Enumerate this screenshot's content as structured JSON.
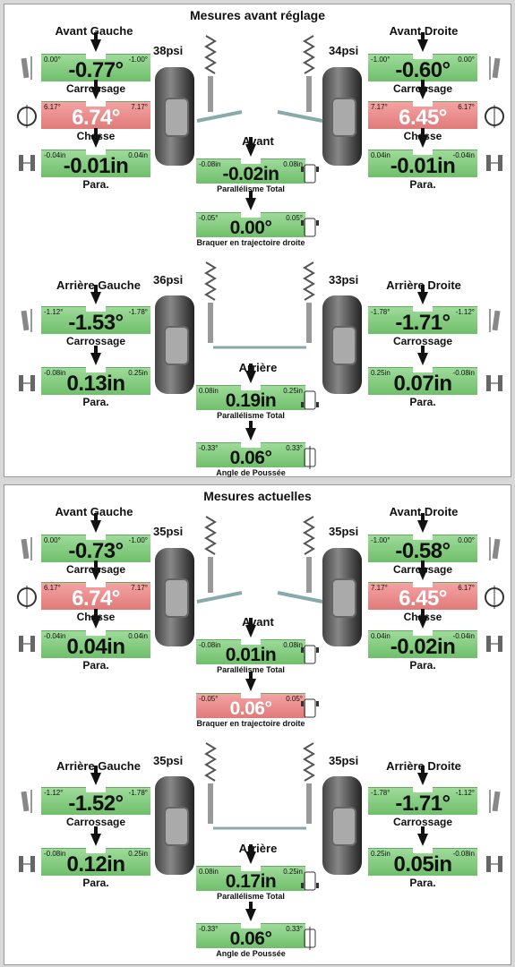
{
  "panels": [
    {
      "title": "Mesures avant réglage",
      "front_left": {
        "header": "Avant Gauche",
        "psi": "38psi",
        "camber": {
          "lo": "0.00°",
          "hi": "-1.00°",
          "value": "-0.77°",
          "label": "Carrossage",
          "state": "green"
        },
        "caster": {
          "lo": "6.17°",
          "hi": "7.17°",
          "value": "6.74°",
          "label": "Chasse",
          "state": "red"
        },
        "toe": {
          "lo": "-0.04in",
          "hi": "0.04in",
          "value": "-0.01in",
          "label": "Para.",
          "state": "green"
        }
      },
      "front_right": {
        "header": "Avant Droite",
        "psi": "34psi",
        "camber": {
          "lo": "-1.00°",
          "hi": "0.00°",
          "value": "-0.60°",
          "label": "Carrossage",
          "state": "green"
        },
        "caster": {
          "lo": "7.17°",
          "hi": "6.17°",
          "value": "6.45°",
          "label": "Chasse",
          "state": "red"
        },
        "toe": {
          "lo": "0.04in",
          "hi": "-0.04in",
          "value": "-0.01in",
          "label": "Para.",
          "state": "green"
        }
      },
      "front_center": {
        "header": "Avant",
        "total_toe": {
          "lo": "-0.08in",
          "hi": "0.08in",
          "value": "-0.02in",
          "label": "Parallélisme Total",
          "state": "green"
        },
        "steer": {
          "lo": "-0.05°",
          "hi": "0.05°",
          "value": "0.00°",
          "label": "Braquer en trajectoire droite",
          "state": "green"
        }
      },
      "rear_left": {
        "header": "Arrière Gauche",
        "psi": "36psi",
        "camber": {
          "lo": "-1.12°",
          "hi": "-1.78°",
          "value": "-1.53°",
          "label": "Carrossage",
          "state": "green"
        },
        "toe": {
          "lo": "-0.08in",
          "hi": "0.25in",
          "value": "0.13in",
          "label": "Para.",
          "state": "green"
        }
      },
      "rear_right": {
        "header": "Arrière Droite",
        "psi": "33psi",
        "camber": {
          "lo": "-1.78°",
          "hi": "-1.12°",
          "value": "-1.71°",
          "label": "Carrossage",
          "state": "green"
        },
        "toe": {
          "lo": "0.25in",
          "hi": "-0.08in",
          "value": "0.07in",
          "label": "Para.",
          "state": "green"
        }
      },
      "rear_center": {
        "header": "Arrière",
        "total_toe": {
          "lo": "0.08in",
          "hi": "0.25in",
          "value": "0.19in",
          "label": "Parallélisme Total",
          "state": "green"
        },
        "thrust": {
          "lo": "-0.33°",
          "hi": "0.33°",
          "value": "0.06°",
          "label": "Angle de Poussée",
          "state": "green"
        }
      }
    },
    {
      "title": "Mesures actuelles",
      "front_left": {
        "header": "Avant Gauche",
        "psi": "35psi",
        "camber": {
          "lo": "0.00°",
          "hi": "-1.00°",
          "value": "-0.73°",
          "label": "Carrossage",
          "state": "green"
        },
        "caster": {
          "lo": "6.17°",
          "hi": "7.17°",
          "value": "6.74°",
          "label": "Chasse",
          "state": "red"
        },
        "toe": {
          "lo": "-0.04in",
          "hi": "0.04in",
          "value": "0.04in",
          "label": "Para.",
          "state": "green"
        }
      },
      "front_right": {
        "header": "Avant Droite",
        "psi": "35psi",
        "camber": {
          "lo": "-1.00°",
          "hi": "0.00°",
          "value": "-0.58°",
          "label": "Carrossage",
          "state": "green"
        },
        "caster": {
          "lo": "7.17°",
          "hi": "6.17°",
          "value": "6.45°",
          "label": "Chasse",
          "state": "red"
        },
        "toe": {
          "lo": "0.04in",
          "hi": "-0.04in",
          "value": "-0.02in",
          "label": "Para.",
          "state": "green"
        }
      },
      "front_center": {
        "header": "Avant",
        "total_toe": {
          "lo": "-0.08in",
          "hi": "0.08in",
          "value": "0.01in",
          "label": "Parallélisme Total",
          "state": "green"
        },
        "steer": {
          "lo": "-0.05°",
          "hi": "0.05°",
          "value": "0.06°",
          "label": "Braquer en trajectoire droite",
          "state": "red"
        }
      },
      "rear_left": {
        "header": "Arrière Gauche",
        "psi": "35psi",
        "camber": {
          "lo": "-1.12°",
          "hi": "-1.78°",
          "value": "-1.52°",
          "label": "Carrossage",
          "state": "green"
        },
        "toe": {
          "lo": "-0.08in",
          "hi": "0.25in",
          "value": "0.12in",
          "label": "Para.",
          "state": "green"
        }
      },
      "rear_right": {
        "header": "Arrière Droite",
        "psi": "35psi",
        "camber": {
          "lo": "-1.78°",
          "hi": "-1.12°",
          "value": "-1.71°",
          "label": "Carrossage",
          "state": "green"
        },
        "toe": {
          "lo": "0.25in",
          "hi": "-0.08in",
          "value": "0.05in",
          "label": "Para.",
          "state": "green"
        }
      },
      "rear_center": {
        "header": "Arrière",
        "total_toe": {
          "lo": "0.08in",
          "hi": "0.25in",
          "value": "0.17in",
          "label": "Parallélisme Total",
          "state": "green"
        },
        "thrust": {
          "lo": "-0.33°",
          "hi": "0.33°",
          "value": "0.06°",
          "label": "Angle de Poussée",
          "state": "green"
        }
      }
    }
  ]
}
